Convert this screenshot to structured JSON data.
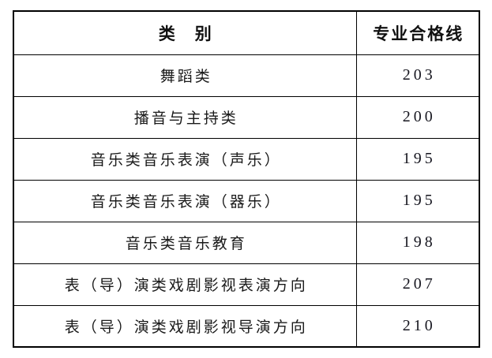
{
  "header": {
    "category": "类　别",
    "score_line": "专业合格线"
  },
  "rows": [
    {
      "category": "舞蹈类",
      "score": "203"
    },
    {
      "category": "播音与主持类",
      "score": "200"
    },
    {
      "category": "音乐类音乐表演（声乐）",
      "score": "195"
    },
    {
      "category": "音乐类音乐表演（器乐）",
      "score": "195"
    },
    {
      "category": "音乐类音乐教育",
      "score": "198"
    },
    {
      "category": "表（导）演类戏剧影视表演方向",
      "score": "207"
    },
    {
      "category": "表（导）演类戏剧影视导演方向",
      "score": "210"
    }
  ],
  "colors": {
    "border": "#000000",
    "text": "#1a1a1a",
    "background": "#ffffff"
  }
}
